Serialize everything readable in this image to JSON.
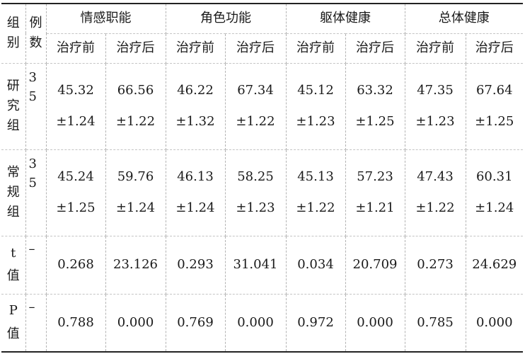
{
  "header": {
    "group_label": [
      "组",
      "别"
    ],
    "count_label": [
      "例",
      "数"
    ],
    "groups": [
      "情感职能",
      "角色功能",
      "躯体健康",
      "总体健康"
    ],
    "subs": [
      "治疗前",
      "治疗后",
      "治疗前",
      "治疗后",
      "治疗前",
      "治疗后",
      "治疗前",
      "治疗后"
    ]
  },
  "rows": [
    {
      "name": [
        "研",
        "究",
        "组"
      ],
      "count": [
        "3",
        "5"
      ],
      "cells": [
        [
          "45.32",
          "±1.24"
        ],
        [
          "66.56",
          "±1.22"
        ],
        [
          "46.22",
          "±1.32"
        ],
        [
          "67.34",
          "±1.22"
        ],
        [
          "45.12",
          "±1.23"
        ],
        [
          "63.32",
          "±1.25"
        ],
        [
          "47.35",
          "±1.23"
        ],
        [
          "67.64",
          "±1.25"
        ]
      ]
    },
    {
      "name": [
        "常",
        "规",
        "组"
      ],
      "count": [
        "3",
        "5"
      ],
      "cells": [
        [
          "45.24",
          "±1.25"
        ],
        [
          "59.76",
          "±1.24"
        ],
        [
          "46.13",
          "±1.24"
        ],
        [
          "58.25",
          "±1.23"
        ],
        [
          "45.13",
          "±1.22"
        ],
        [
          "57.23",
          "±1.21"
        ],
        [
          "47.43",
          "±1.22"
        ],
        [
          "60.31",
          "±1.24"
        ]
      ]
    },
    {
      "name": [
        "t",
        "值"
      ],
      "count": [
        "–"
      ],
      "cells": [
        [
          "0.268"
        ],
        [
          "23.126"
        ],
        [
          "0.293"
        ],
        [
          "31.041"
        ],
        [
          "0.034"
        ],
        [
          "20.709"
        ],
        [
          "0.273"
        ],
        [
          "24.629"
        ]
      ]
    },
    {
      "name": [
        "P",
        "值"
      ],
      "count": [
        "–"
      ],
      "cells": [
        [
          "0.788"
        ],
        [
          "0.000"
        ],
        [
          "0.769"
        ],
        [
          "0.000"
        ],
        [
          "0.972"
        ],
        [
          "0.000"
        ],
        [
          "0.785"
        ],
        [
          "0.000"
        ]
      ]
    }
  ]
}
